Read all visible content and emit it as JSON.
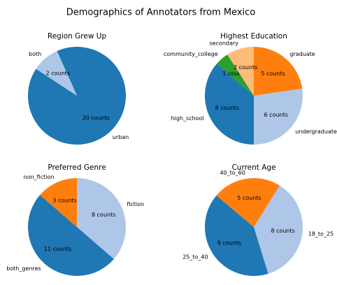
{
  "title": "Demographics of Annotators from Mexico",
  "chart_data": [
    {
      "type": "pie",
      "title": "Region Grew Up",
      "categories": [
        "urban",
        "both"
      ],
      "values": [
        20,
        2
      ],
      "value_labels": [
        "20 counts",
        "2 counts"
      ],
      "colors": [
        "#1f77b4",
        "#aec7e8"
      ],
      "startangle": 114
    },
    {
      "type": "pie",
      "title": "Highest Education",
      "categories": [
        "graduate",
        "undergraduate",
        "high_school",
        "community_college",
        "secondary"
      ],
      "values": [
        5,
        6,
        8,
        1,
        2
      ],
      "value_labels": [
        "5 counts",
        "6 counts",
        "8 counts",
        "1 counts",
        "2 counts"
      ],
      "colors": [
        "#ff7f0e",
        "#aec7e8",
        "#1f77b4",
        "#2ca02c",
        "#ffbb78"
      ],
      "startangle": 90
    },
    {
      "type": "pie",
      "title": "Preferred Genre",
      "categories": [
        "fiction",
        "both_genres",
        "non_fiction"
      ],
      "values": [
        8,
        11,
        3
      ],
      "value_labels": [
        "8 counts",
        "11 counts",
        "3 counts"
      ],
      "colors": [
        "#aec7e8",
        "#1f77b4",
        "#ff7f0e"
      ],
      "startangle": 90
    },
    {
      "type": "pie",
      "title": "Current Age",
      "categories": [
        "18_to_25",
        "25_to_40",
        "40_to_60"
      ],
      "values": [
        8,
        9,
        5
      ],
      "value_labels": [
        "8 counts",
        "9 counts",
        "5 counts"
      ],
      "colors": [
        "#aec7e8",
        "#1f77b4",
        "#ff7f0e"
      ],
      "startangle": 58
    }
  ]
}
